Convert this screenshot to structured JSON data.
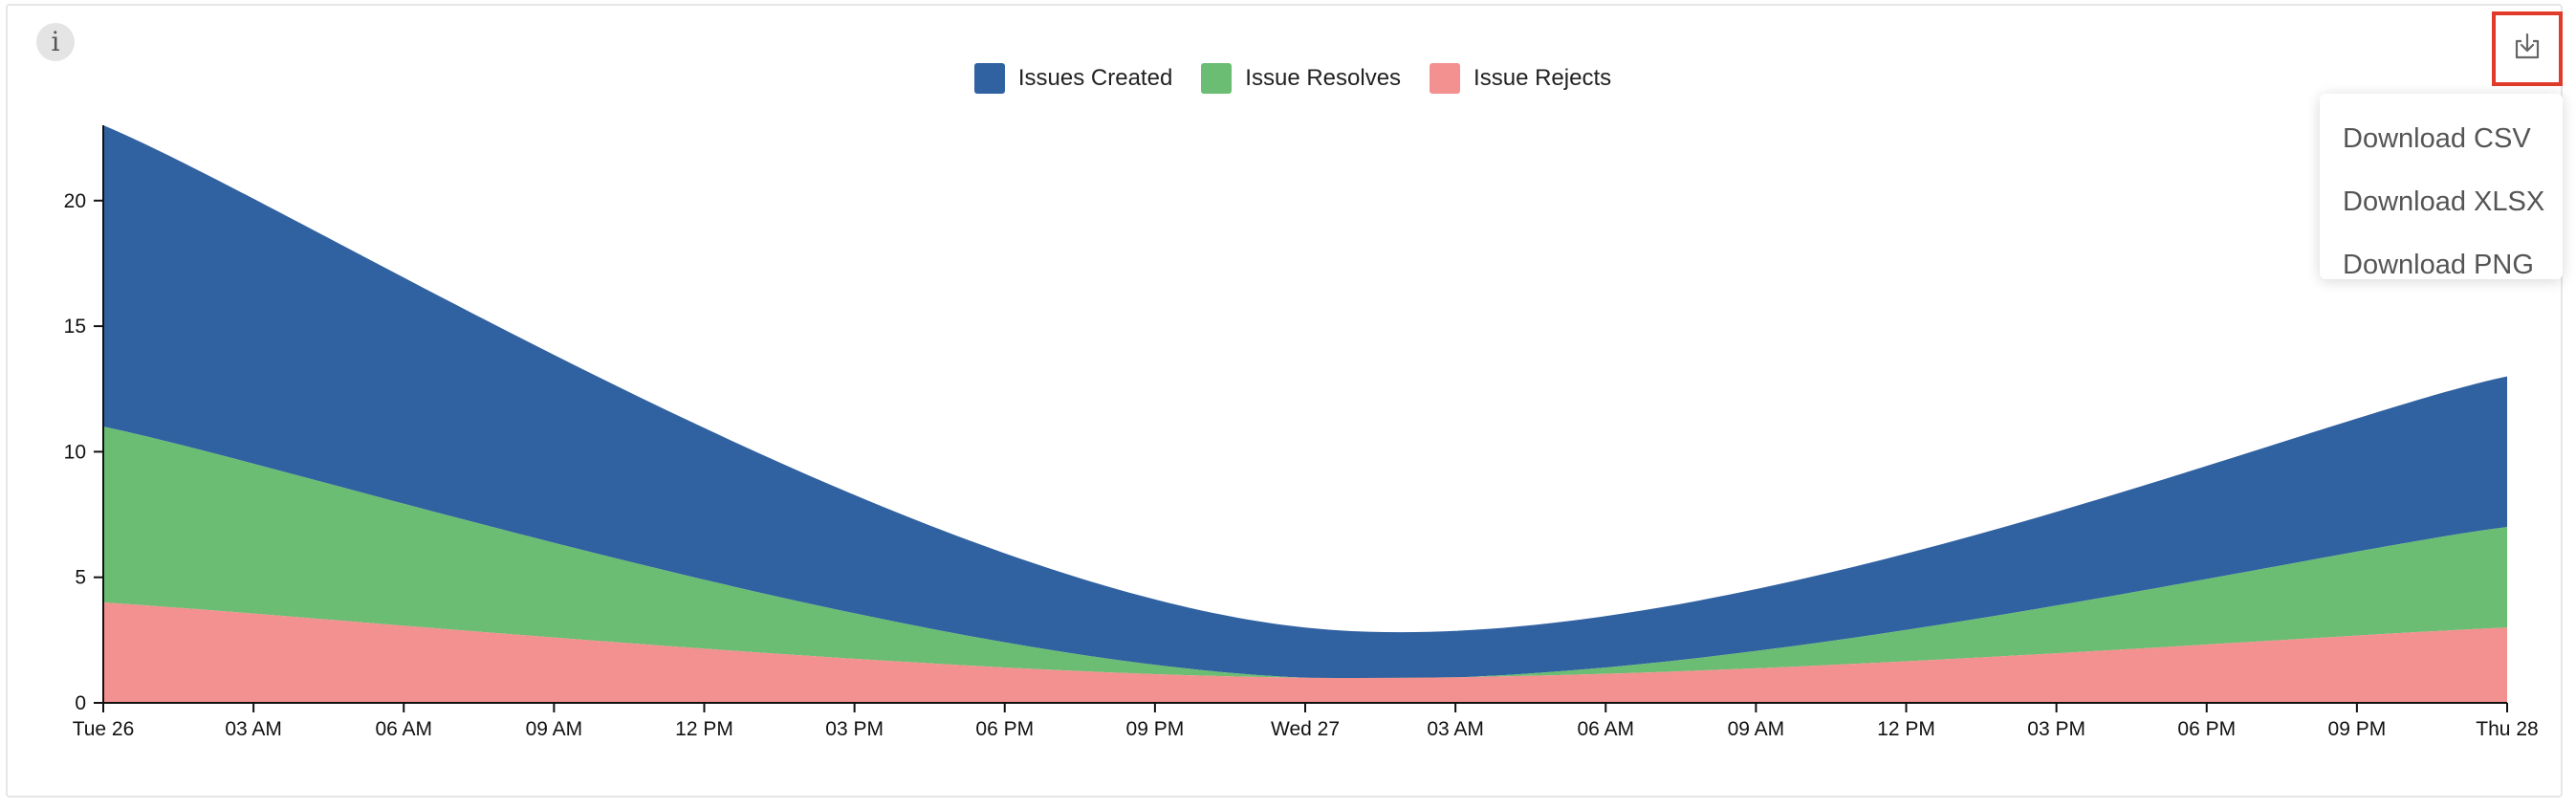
{
  "toolbar": {
    "info_icon": "info-icon",
    "info_glyph": "i",
    "download_icon": "download-icon"
  },
  "menu": {
    "items": [
      {
        "label": "Download CSV"
      },
      {
        "label": "Download XLSX"
      },
      {
        "label": "Download PNG"
      }
    ]
  },
  "colors": {
    "created": "#3061a1",
    "resolves": "#6abd72",
    "rejects": "#f2918f",
    "highlight": "#e03b2b"
  },
  "chart_data": {
    "type": "area",
    "stacked": true,
    "legend": [
      {
        "name": "Issues Created",
        "color": "#3061a1"
      },
      {
        "name": "Issue Resolves",
        "color": "#6abd72"
      },
      {
        "name": "Issue Rejects",
        "color": "#f2918f"
      }
    ],
    "legend_position": "top-center",
    "x_ticks": [
      "Tue 26",
      "03 AM",
      "06 AM",
      "09 AM",
      "12 PM",
      "03 PM",
      "06 PM",
      "09 PM",
      "Wed 27",
      "03 AM",
      "06 AM",
      "09 AM",
      "12 PM",
      "03 PM",
      "06 PM",
      "09 PM",
      "Thu 28"
    ],
    "x": [
      "Tue 26",
      "Wed 27",
      "Thu 28"
    ],
    "series": [
      {
        "name": "Issue Rejects",
        "values": [
          4,
          1,
          3
        ]
      },
      {
        "name": "Issue Resolves",
        "values": [
          7,
          0,
          4
        ]
      },
      {
        "name": "Issues Created",
        "values": [
          12,
          2,
          6
        ]
      }
    ],
    "y_ticks": [
      0,
      5,
      10,
      15,
      20
    ],
    "ylim": [
      0,
      23
    ],
    "grid": false,
    "xlabel": "",
    "ylabel": ""
  }
}
